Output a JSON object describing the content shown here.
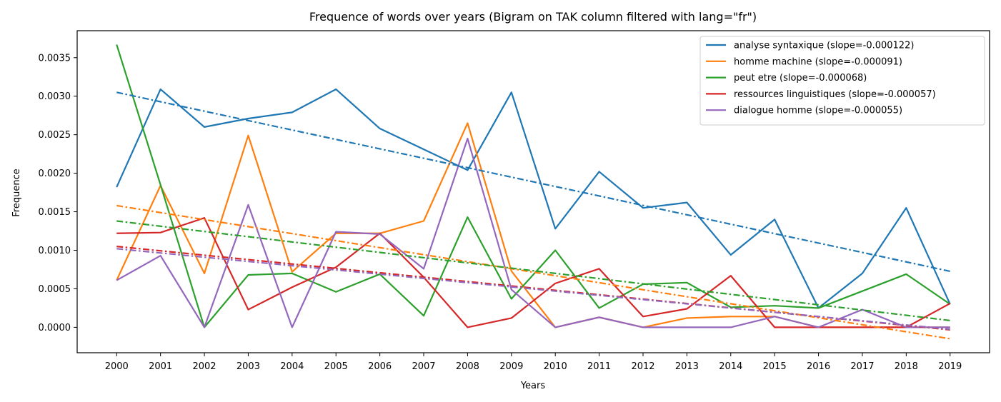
{
  "chart_data": {
    "type": "line",
    "title": "Frequence of words over years (Bigram on TAK column filtered with lang=\"fr\")",
    "xlabel": "Years",
    "ylabel": "Frequence",
    "x": [
      2000,
      2001,
      2002,
      2003,
      2004,
      2005,
      2006,
      2007,
      2008,
      2009,
      2010,
      2011,
      2012,
      2013,
      2014,
      2015,
      2016,
      2017,
      2018,
      2019
    ],
    "x_tick_labels": [
      "2000",
      "2001",
      "2002",
      "2003",
      "2004",
      "2005",
      "2006",
      "2007",
      "2008",
      "2009",
      "2010",
      "2011",
      "2012",
      "2013",
      "2014",
      "2015",
      "2016",
      "2017",
      "2018",
      "2019"
    ],
    "y_ticks": [
      0.0,
      0.0005,
      0.001,
      0.0015,
      0.002,
      0.0025,
      0.003,
      0.0035
    ],
    "y_tick_labels": [
      "0.0000",
      "0.0005",
      "0.0010",
      "0.0015",
      "0.0020",
      "0.0025",
      "0.0030",
      "0.0035"
    ],
    "ylim": [
      -0.00033,
      0.00385
    ],
    "xlim": [
      1999.1,
      2019.9
    ],
    "grid": false,
    "legend_position": "top-right",
    "series": [
      {
        "name": "analyse syntaxique (slope=-0.000122)",
        "color": "#1f77b4",
        "values": [
          0.00182,
          0.00309,
          0.0026,
          0.00271,
          0.00279,
          0.00309,
          0.00258,
          0.00231,
          0.00204,
          0.00305,
          0.00128,
          0.00202,
          0.00155,
          0.00162,
          0.00094,
          0.0014,
          0.00025,
          0.0007,
          0.00155,
          0.0003
        ],
        "trend": [
          0.00305,
          0.000727
        ]
      },
      {
        "name": "homme machine (slope=-0.000091)",
        "color": "#ff7f0e",
        "values": [
          0.00061,
          0.00184,
          0.0007,
          0.00249,
          0.00072,
          0.00122,
          0.00122,
          0.00138,
          0.00265,
          0.00073,
          0.0,
          0.00013,
          0.0,
          0.00012,
          0.00014,
          0.00014,
          0.0,
          0.0,
          0.0,
          0.0
        ],
        "trend": [
          0.00158,
          -0.000149
        ]
      },
      {
        "name": "peut etre (slope=-0.000068)",
        "color": "#2ca02c",
        "values": [
          0.00367,
          0.00185,
          0.0,
          0.00068,
          0.0007,
          0.00046,
          0.00069,
          0.00015,
          0.00143,
          0.00037,
          0.001,
          0.00025,
          0.00056,
          0.00058,
          0.00026,
          0.00028,
          0.00025,
          0.00047,
          0.00069,
          0.0003
        ],
        "trend": [
          0.00138,
          8.8e-05
        ]
      },
      {
        "name": "ressources linguistiques (slope=-0.000057)",
        "color": "#d62728",
        "values": [
          0.00122,
          0.00123,
          0.00142,
          0.00023,
          0.00052,
          0.00078,
          0.00122,
          0.00065,
          0.0,
          0.00012,
          0.00057,
          0.00076,
          0.00014,
          0.00024,
          0.00067,
          0.0,
          0.0,
          0.0,
          0.0,
          0.00031
        ],
        "trend": [
          0.00105,
          -3.3e-05
        ]
      },
      {
        "name": "dialogue homme (slope=-0.000055)",
        "color": "#9467bd",
        "values": [
          0.00061,
          0.00093,
          0.0,
          0.00159,
          0.0,
          0.00124,
          0.00121,
          0.00076,
          0.00245,
          0.00049,
          0.0,
          0.00013,
          0.0,
          0.0,
          0.0,
          0.00014,
          0.0,
          0.00023,
          0.0,
          0.0
        ],
        "trend": [
          0.00102,
          -2.5e-05
        ]
      }
    ]
  }
}
